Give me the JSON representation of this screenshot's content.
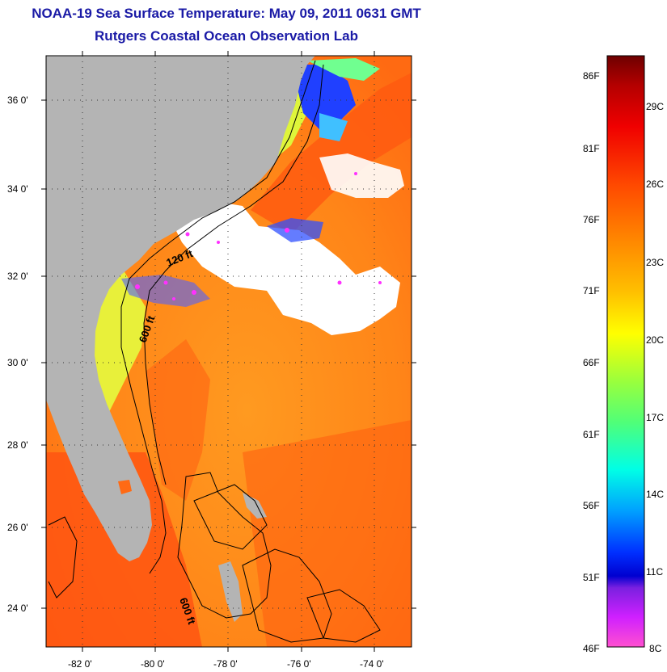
{
  "header": {
    "title": "NOAA-19 Sea Surface Temperature:  May 09, 2011 0631 GMT",
    "subtitle": "Rutgers Coastal Ocean Observation Lab"
  },
  "map": {
    "lat_labels": [
      "36 0'",
      "34 0'",
      "32 0'",
      "30 0'",
      "28 0'",
      "26 0'",
      "24 0'"
    ],
    "lon_labels": [
      "-82 0'",
      "-80 0'",
      "-78 0'",
      "-76 0'",
      "-74 0'"
    ],
    "contour_labels": [
      "120 ft",
      "600 ft",
      "600 ft"
    ],
    "colors": {
      "land": "#b4b4b4",
      "cloud": "#ffffff",
      "warm_ocean": "#ff7a1a",
      "gulf_stream": "#ff5a10",
      "shelf_water": "#ffe000",
      "cool_shelf": "#8cff50",
      "cold_water": "#1a2aff",
      "magenta_speckle": "#ff30ff"
    }
  },
  "colorbar": {
    "f_labels": [
      "86F",
      "81F",
      "76F",
      "71F",
      "66F",
      "61F",
      "56F",
      "51F",
      "46F"
    ],
    "c_labels": [
      "29C",
      "26C",
      "23C",
      "20C",
      "17C",
      "14C",
      "11C",
      "8C"
    ]
  }
}
